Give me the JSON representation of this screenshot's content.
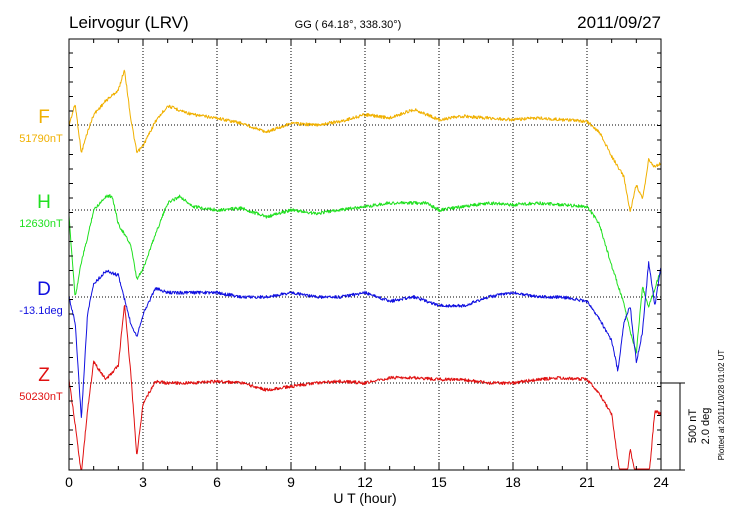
{
  "chart_data": {
    "type": "line",
    "title": "Leirvogur (LRV)",
    "subtitle": "GG ( 64.18°, 338.30°)",
    "date": "2011/09/27",
    "xlabel": "U T (hour)",
    "xlim": [
      0,
      24
    ],
    "x_ticks": [
      "0",
      "3",
      "6",
      "9",
      "12",
      "15",
      "18",
      "21",
      "24"
    ],
    "scale_labels": [
      "500 nT",
      "2.0 deg"
    ],
    "plotted_note": "Plotted at 2011/10/28 01:02 UT",
    "grid": true,
    "series": [
      {
        "name": "F",
        "baseline": "51790nT",
        "color": "#f0b000",
        "offset": 0,
        "x": [
          0,
          0.25,
          0.5,
          0.75,
          1.0,
          1.5,
          2.0,
          2.25,
          2.5,
          2.75,
          3.0,
          3.5,
          4.0,
          5.0,
          6.0,
          7.0,
          8.0,
          9.0,
          10.0,
          11.0,
          12.0,
          13.0,
          14.0,
          15.0,
          16.0,
          17.0,
          18.0,
          19.0,
          20.0,
          21.0,
          21.5,
          22.0,
          22.5,
          22.75,
          23.0,
          23.25,
          23.5,
          23.75,
          24.0
        ],
        "values": [
          0,
          120,
          -160,
          -40,
          60,
          140,
          200,
          320,
          40,
          -160,
          -120,
          20,
          110,
          60,
          40,
          10,
          -40,
          10,
          0,
          20,
          60,
          40,
          90,
          30,
          50,
          40,
          30,
          40,
          30,
          20,
          -40,
          -180,
          -300,
          -500,
          -340,
          -430,
          -200,
          -240,
          -220
        ]
      },
      {
        "name": "H",
        "baseline": "12630nT",
        "color": "#20e020",
        "offset": 0,
        "x": [
          0,
          0.25,
          0.5,
          0.75,
          1.0,
          1.5,
          1.75,
          2.0,
          2.5,
          2.75,
          3.0,
          3.5,
          4.0,
          4.5,
          5.0,
          6.0,
          7.0,
          8.0,
          9.0,
          10.0,
          11.0,
          12.0,
          13.0,
          14.0,
          14.5,
          15.0,
          16.0,
          17.0,
          18.0,
          19.0,
          20.0,
          21.0,
          21.5,
          22.0,
          22.5,
          22.75,
          23.0,
          23.25,
          23.5,
          24.0
        ],
        "values": [
          -40,
          -500,
          -300,
          -160,
          0,
          80,
          80,
          -80,
          -200,
          -400,
          -340,
          -140,
          40,
          80,
          20,
          0,
          10,
          -40,
          0,
          -20,
          0,
          20,
          40,
          40,
          40,
          0,
          20,
          40,
          30,
          40,
          30,
          20,
          -80,
          -320,
          -540,
          -700,
          -820,
          -440,
          -560,
          -340
        ]
      },
      {
        "name": "D",
        "baseline": "-13.1deg",
        "color": "#1010e0",
        "offset": 0,
        "x": [
          0,
          0.25,
          0.5,
          0.75,
          1.0,
          1.5,
          2.0,
          2.5,
          2.75,
          3.0,
          3.5,
          4.0,
          5.0,
          6.0,
          7.0,
          8.0,
          9.0,
          10.0,
          11.0,
          12.0,
          13.0,
          14.0,
          15.0,
          16.0,
          17.0,
          18.0,
          19.0,
          20.0,
          21.0,
          21.5,
          22.0,
          22.25,
          22.5,
          22.75,
          23.0,
          23.25,
          23.5,
          23.75,
          24.0
        ],
        "values": [
          0.0,
          -0.6,
          -2.8,
          -0.4,
          0.3,
          0.6,
          0.5,
          -0.6,
          -0.9,
          -0.4,
          0.2,
          0.1,
          0.1,
          0.1,
          0.0,
          0.0,
          0.1,
          0.0,
          0.0,
          0.1,
          -0.1,
          0.0,
          -0.2,
          -0.2,
          0.0,
          0.1,
          0.0,
          0.0,
          -0.1,
          -0.5,
          -1.0,
          -1.7,
          -0.6,
          -0.2,
          -1.5,
          -0.8,
          0.8,
          -0.2,
          0.7
        ]
      },
      {
        "name": "Z",
        "baseline": "50230nT",
        "color": "#e01010",
        "offset": 0,
        "x": [
          0,
          0.25,
          0.5,
          0.75,
          1.0,
          1.5,
          2.0,
          2.25,
          2.5,
          2.75,
          3.0,
          3.5,
          4.0,
          5.0,
          6.0,
          7.0,
          8.0,
          9.0,
          10.0,
          11.0,
          12.0,
          13.0,
          14.0,
          15.0,
          16.0,
          17.0,
          18.0,
          19.0,
          20.0,
          21.0,
          21.5,
          22.0,
          22.25,
          22.5,
          22.75,
          23.0,
          23.25,
          23.5,
          23.75,
          24.0
        ],
        "values": [
          20,
          -240,
          -520,
          -160,
          120,
          20,
          100,
          460,
          60,
          -420,
          -120,
          10,
          0,
          0,
          10,
          0,
          -40,
          -20,
          0,
          10,
          0,
          30,
          30,
          20,
          20,
          0,
          0,
          20,
          30,
          20,
          -60,
          -180,
          -440,
          -700,
          -380,
          -560,
          -800,
          -560,
          -160,
          -180
        ]
      }
    ]
  }
}
